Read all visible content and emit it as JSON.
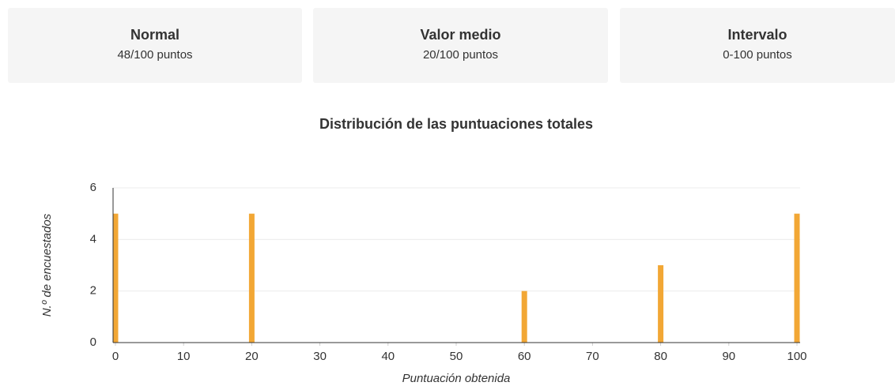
{
  "cards": [
    {
      "title": "Normal",
      "value": "48/100 puntos"
    },
    {
      "title": "Valor medio",
      "value": "20/100 puntos"
    },
    {
      "title": "Intervalo",
      "value": "0-100 puntos"
    }
  ],
  "chart_data": {
    "type": "bar",
    "title": "Distribución de las puntuaciones totales",
    "x_label": "Puntuación obtenida",
    "y_label": "N.º de encuestados",
    "x": [
      0,
      20,
      60,
      80,
      100
    ],
    "values": [
      5,
      5,
      2,
      3,
      5
    ],
    "color": "#f2a735",
    "xlim": [
      0,
      100
    ],
    "xticks": [
      0,
      10,
      20,
      30,
      40,
      50,
      60,
      70,
      80,
      90,
      100
    ],
    "ylim": [
      0,
      6
    ],
    "yticks": [
      0,
      2,
      4,
      6
    ],
    "grid": true
  }
}
